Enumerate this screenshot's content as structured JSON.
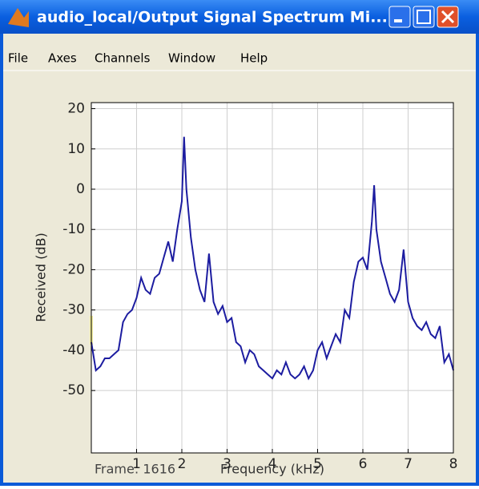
{
  "window": {
    "title": "audio_local/Output Signal Spectrum Mi..."
  },
  "menu": [
    "File",
    "Axes",
    "Channels",
    "Window",
    "Help"
  ],
  "chart_data": {
    "type": "line",
    "xlabel": "Frequency (kHz)",
    "ylabel": "Received (dB)",
    "annotation": "Frame: 1616",
    "x": [
      0,
      0.1,
      0.2,
      0.3,
      0.4,
      0.5,
      0.6,
      0.7,
      0.8,
      0.9,
      1.0,
      1.1,
      1.2,
      1.3,
      1.4,
      1.5,
      1.6,
      1.7,
      1.8,
      1.9,
      2.0,
      2.05,
      2.1,
      2.2,
      2.3,
      2.4,
      2.5,
      2.6,
      2.7,
      2.8,
      2.9,
      3.0,
      3.1,
      3.2,
      3.3,
      3.4,
      3.5,
      3.6,
      3.7,
      3.8,
      3.9,
      4.0,
      4.1,
      4.2,
      4.3,
      4.4,
      4.5,
      4.6,
      4.7,
      4.8,
      4.9,
      5.0,
      5.1,
      5.2,
      5.3,
      5.4,
      5.5,
      5.6,
      5.7,
      5.8,
      5.9,
      6.0,
      6.1,
      6.2,
      6.25,
      6.3,
      6.4,
      6.5,
      6.6,
      6.7,
      6.8,
      6.9,
      7.0,
      7.1,
      7.2,
      7.3,
      7.4,
      7.5,
      7.6,
      7.7,
      7.8,
      7.9,
      8.0
    ],
    "values": [
      -38,
      -45,
      -44,
      -42,
      -42,
      -41,
      -40,
      -33,
      -31,
      -30,
      -27,
      -22,
      -25,
      -26,
      -22,
      -21,
      -17,
      -13,
      -18,
      -10,
      -3,
      13,
      0,
      -12,
      -20,
      -25,
      -28,
      -16,
      -28,
      -31,
      -29,
      -33,
      -32,
      -38,
      -39,
      -43,
      -40,
      -41,
      -44,
      -45,
      -46,
      -47,
      -45,
      -46,
      -43,
      -46,
      -47,
      -46,
      -44,
      -47,
      -45,
      -40,
      -38,
      -42,
      -39,
      -36,
      -38,
      -30,
      -32,
      -23,
      -18,
      -17,
      -20,
      -8,
      1,
      -10,
      -18,
      -22,
      -26,
      -28,
      -25,
      -15,
      -28,
      -32,
      -34,
      -35,
      -33,
      -36,
      -37,
      -34,
      -43,
      -41,
      -45
    ],
    "color": "#1c1ca0",
    "xlim": [
      0,
      8
    ],
    "xticks": [
      1,
      2,
      3,
      4,
      5,
      6,
      7,
      8
    ],
    "ylim": [
      -65.5,
      21.5
    ],
    "yticks": [
      -50,
      -40,
      -30,
      -20,
      -10,
      0,
      10,
      20
    ],
    "grid": true
  }
}
